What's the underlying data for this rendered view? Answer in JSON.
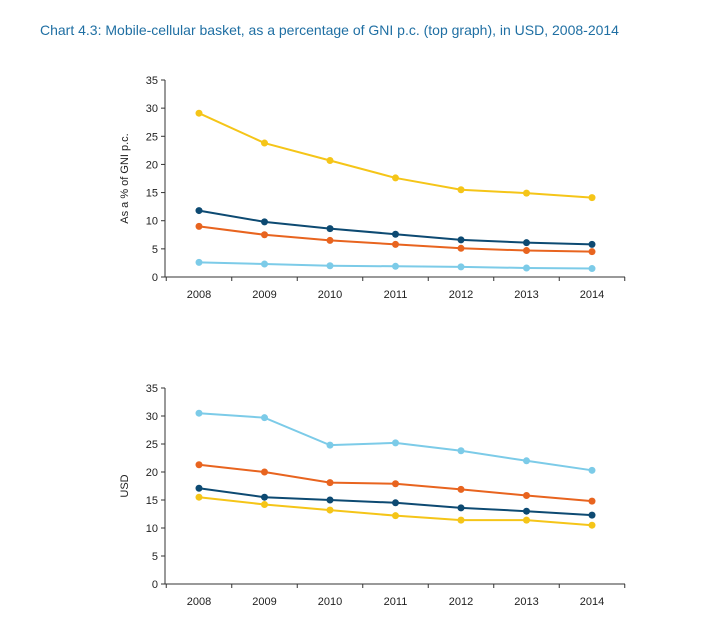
{
  "page_title": "Chart 4.3:  Mobile-cellular basket, as a percentage of GNI p.c. (top graph), in USD, 2008-2014",
  "colors": {
    "title": "#1f6fa3",
    "series": [
      "#f5c518",
      "#0d4a72",
      "#e8641f",
      "#7ccbe8"
    ]
  },
  "chart_data": [
    {
      "type": "line",
      "title": "",
      "ylabel": "As a % of GNI p.c.",
      "xlabel": "",
      "ylim": [
        0,
        35
      ],
      "yticks": [
        "0",
        "5",
        "10",
        "15",
        "20",
        "25",
        "30",
        "35"
      ],
      "categories": [
        "2008",
        "2009",
        "2010",
        "2011",
        "2012",
        "2013",
        "2014"
      ],
      "grid": false,
      "series": [
        {
          "color": "#f5c518",
          "values": [
            29.1,
            23.8,
            20.7,
            17.6,
            15.5,
            14.9,
            14.1
          ]
        },
        {
          "color": "#0d4a72",
          "values": [
            11.8,
            9.8,
            8.6,
            7.6,
            6.6,
            6.1,
            5.8
          ]
        },
        {
          "color": "#e8641f",
          "values": [
            9.0,
            7.5,
            6.5,
            5.8,
            5.1,
            4.7,
            4.5
          ]
        },
        {
          "color": "#7ccbe8",
          "values": [
            2.6,
            2.3,
            2.0,
            1.9,
            1.8,
            1.6,
            1.5
          ]
        }
      ]
    },
    {
      "type": "line",
      "title": "",
      "ylabel": "USD",
      "xlabel": "",
      "ylim": [
        0,
        35
      ],
      "yticks": [
        "0",
        "5",
        "10",
        "15",
        "20",
        "25",
        "30",
        "35"
      ],
      "categories": [
        "2008",
        "2009",
        "2010",
        "2011",
        "2012",
        "2013",
        "2014"
      ],
      "grid": false,
      "series": [
        {
          "color": "#7ccbe8",
          "values": [
            30.5,
            29.7,
            24.8,
            25.2,
            23.8,
            22.0,
            20.3
          ]
        },
        {
          "color": "#e8641f",
          "values": [
            21.3,
            20.0,
            18.1,
            17.9,
            16.9,
            15.8,
            14.8
          ]
        },
        {
          "color": "#0d4a72",
          "values": [
            17.1,
            15.5,
            15.0,
            14.5,
            13.6,
            13.0,
            12.3
          ]
        },
        {
          "color": "#f5c518",
          "values": [
            15.5,
            14.2,
            13.2,
            12.2,
            11.4,
            11.4,
            10.5
          ]
        }
      ]
    }
  ]
}
